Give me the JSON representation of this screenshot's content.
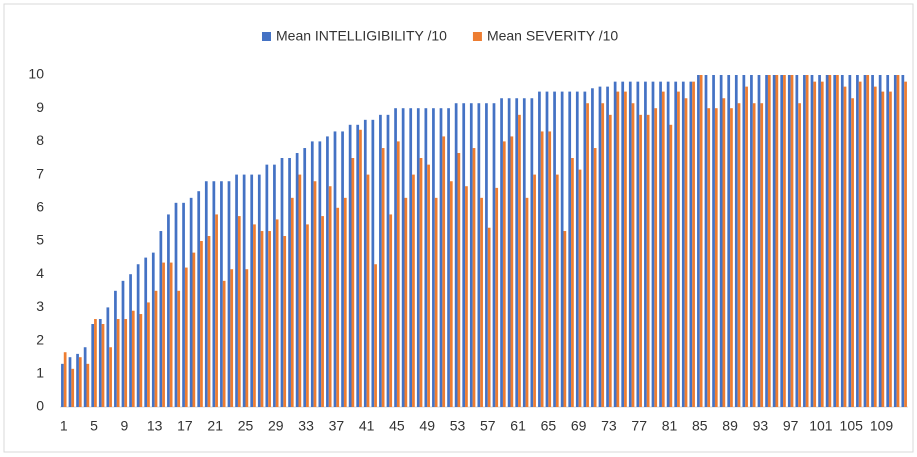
{
  "chart_data": {
    "type": "bar",
    "categories": [
      "1",
      null,
      null,
      null,
      "5",
      null,
      null,
      null,
      "9",
      null,
      null,
      null,
      "13",
      null,
      null,
      null,
      "17",
      null,
      null,
      null,
      "21",
      null,
      null,
      null,
      "25",
      null,
      null,
      null,
      "29",
      null,
      null,
      null,
      "33",
      null,
      null,
      null,
      "37",
      null,
      null,
      null,
      "41",
      null,
      null,
      null,
      "45",
      null,
      null,
      null,
      "49",
      null,
      null,
      null,
      "53",
      null,
      null,
      null,
      "57",
      null,
      null,
      null,
      "61",
      null,
      null,
      null,
      "65",
      null,
      null,
      null,
      "69",
      null,
      null,
      null,
      "73",
      null,
      null,
      null,
      "77",
      null,
      null,
      null,
      "81",
      null,
      null,
      null,
      "85",
      null,
      null,
      null,
      "89",
      null,
      null,
      null,
      "93",
      null,
      null,
      null,
      "97",
      null,
      null,
      null,
      "101",
      null,
      null,
      null,
      "105",
      null,
      null,
      null,
      "109",
      null,
      null,
      null
    ],
    "series": [
      {
        "name": "Mean INTELLIGIBILITY /10",
        "color": "#4472c4",
        "values": [
          1.3,
          1.5,
          1.6,
          1.8,
          2.5,
          2.65,
          3.0,
          3.5,
          3.8,
          4.0,
          4.3,
          4.5,
          4.65,
          5.3,
          5.8,
          6.15,
          6.15,
          6.3,
          6.5,
          6.8,
          6.8,
          6.8,
          6.8,
          7.0,
          7.0,
          7.0,
          7.0,
          7.3,
          7.3,
          7.5,
          7.5,
          7.65,
          7.8,
          8.0,
          8.0,
          8.15,
          8.3,
          8.3,
          8.5,
          8.5,
          8.65,
          8.65,
          8.8,
          8.8,
          9.0,
          9.0,
          9.0,
          9.0,
          9.0,
          9.0,
          9.0,
          9.0,
          9.15,
          9.15,
          9.15,
          9.15,
          9.15,
          9.15,
          9.3,
          9.3,
          9.3,
          9.3,
          9.3,
          9.5,
          9.5,
          9.5,
          9.5,
          9.5,
          9.5,
          9.5,
          9.6,
          9.65,
          9.65,
          9.8,
          9.8,
          9.8,
          9.8,
          9.8,
          9.8,
          9.8,
          9.8,
          9.8,
          9.8,
          9.8,
          10,
          10,
          10,
          10,
          10,
          10,
          10,
          10,
          10,
          10,
          10,
          10,
          10,
          10,
          10,
          10,
          10,
          10,
          10,
          10,
          10,
          10,
          10,
          10,
          10,
          10,
          10,
          10
        ]
      },
      {
        "name": "Mean SEVERITY /10",
        "color": "#ed7d31",
        "values": [
          1.65,
          1.15,
          1.5,
          1.3,
          2.65,
          2.5,
          1.8,
          2.65,
          2.65,
          2.9,
          2.8,
          3.15,
          3.5,
          4.35,
          4.35,
          3.5,
          4.2,
          4.65,
          5.0,
          5.15,
          5.8,
          3.8,
          4.15,
          5.75,
          4.15,
          5.5,
          5.3,
          5.3,
          5.65,
          5.15,
          6.3,
          7.0,
          5.5,
          6.8,
          5.75,
          6.65,
          6.0,
          6.3,
          7.5,
          8.35,
          7.0,
          4.3,
          7.8,
          5.8,
          8.0,
          6.3,
          7.0,
          7.5,
          7.3,
          6.3,
          8.15,
          6.8,
          7.65,
          6.65,
          7.8,
          6.3,
          5.4,
          6.6,
          8.0,
          8.15,
          8.8,
          6.3,
          7.0,
          8.3,
          8.3,
          7.0,
          5.3,
          7.5,
          7.15,
          9.15,
          7.8,
          9.15,
          8.8,
          9.5,
          9.5,
          9.15,
          8.8,
          8.8,
          9.0,
          9.5,
          8.5,
          9.5,
          9.3,
          9.8,
          10,
          9.0,
          9.0,
          9.3,
          9.0,
          9.15,
          9.65,
          9.15,
          9.15,
          10,
          10,
          10,
          10,
          9.15,
          10,
          9.8,
          9.8,
          10,
          10,
          9.65,
          9.3,
          9.8,
          10,
          9.65,
          9.5,
          9.5,
          10,
          9.8
        ]
      }
    ],
    "ylim": [
      0,
      10
    ],
    "yticks": [
      0,
      1,
      2,
      3,
      4,
      5,
      6,
      7,
      8,
      9,
      10
    ],
    "legend": "top",
    "grid": false
  }
}
